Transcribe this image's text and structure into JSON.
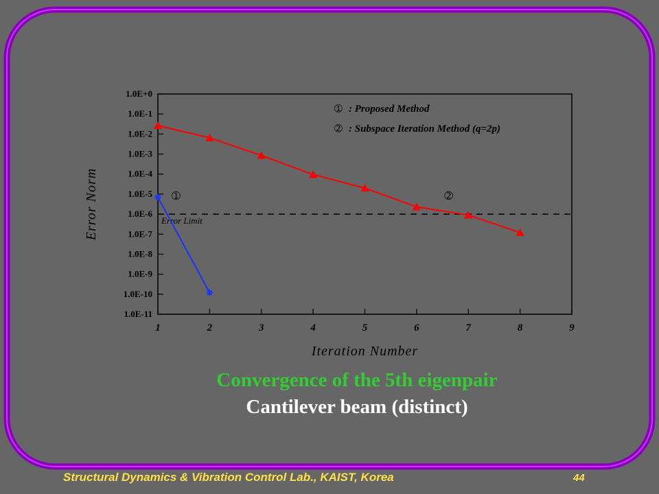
{
  "chart_data": {
    "type": "line",
    "xlabel": "Iteration Number",
    "ylabel": "Error Norm",
    "x_ticks": [
      "1",
      "2",
      "3",
      "4",
      "5",
      "6",
      "7",
      "8",
      "9"
    ],
    "y_ticks": [
      "1.0E+0",
      "1.0E-1",
      "1.0E-2",
      "1.0E-3",
      "1.0E-4",
      "1.0E-5",
      "1.0E-6",
      "1.0E-7",
      "1.0E-8",
      "1.0E-9",
      "1.0E-10",
      "1.0E-11"
    ],
    "y_scale": "log",
    "xlim": [
      1,
      9
    ],
    "ylim": [
      1e-11,
      1
    ],
    "grid": false,
    "series": [
      {
        "id": "1",
        "marker": "asterisk",
        "color": "#1a33ff",
        "x": [
          1,
          2
        ],
        "y": [
          7e-06,
          1.2e-10
        ]
      },
      {
        "id": "2",
        "marker": "triangle",
        "color": "#ff0000",
        "x": [
          1,
          2,
          3,
          4,
          5,
          6,
          7,
          8
        ],
        "y": [
          0.0265,
          0.0065,
          0.00085,
          9.5e-05,
          2e-05,
          2.3e-06,
          9e-07,
          1.2e-07
        ]
      }
    ],
    "reference_line": {
      "y": 1e-06,
      "label": "Error Limit",
      "style": "dashed"
    },
    "legend": {
      "placement": "top-right",
      "entries": [
        {
          "symbol": "➀",
          "text": ": Proposed Method"
        },
        {
          "symbol": "➁",
          "text": ": Subspace Iteration Method (q=2p)"
        }
      ]
    },
    "curve_labels": [
      {
        "symbol": "➀",
        "x": 1.35,
        "y": 5.5e-06
      },
      {
        "symbol": "➁",
        "x": 6.62,
        "y": 5.5e-06
      }
    ]
  },
  "caption": {
    "line1": "Convergence of the 5th eigenpair",
    "line2": "Cantilever beam (distinct)"
  },
  "footer": {
    "lab": "Structural Dynamics & Vibration Control Lab., KAIST, Korea",
    "page": "44"
  },
  "colors": {
    "background": "#666666",
    "frame": "#9900cc",
    "caption_title": "#33cc33",
    "footer_text": "#ffe04a"
  }
}
